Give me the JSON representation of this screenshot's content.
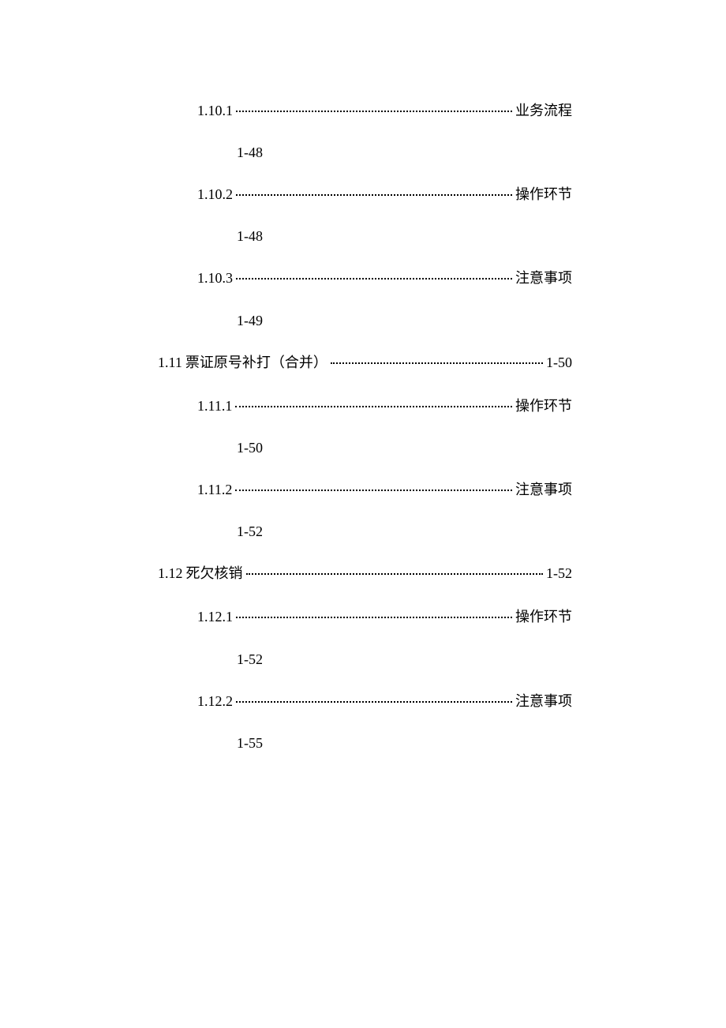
{
  "toc": {
    "text_color": "#000000",
    "background_color": "#ffffff",
    "font_size": 18,
    "entries": [
      {
        "level": 3,
        "number": "1.10.1",
        "title": "",
        "suffix": "业务流程",
        "page": "1-48"
      },
      {
        "level": 3,
        "number": "1.10.2",
        "title": "",
        "suffix": "操作环节",
        "page": "1-48"
      },
      {
        "level": 3,
        "number": "1.10.3",
        "title": "",
        "suffix": "注意事项",
        "page": "1-49"
      },
      {
        "level": 2,
        "number": "1.11",
        "title": "票证原号补打（合并）",
        "suffix": "1-50",
        "page": ""
      },
      {
        "level": 3,
        "number": "1.11.1",
        "title": "",
        "suffix": "操作环节",
        "page": "1-50"
      },
      {
        "level": 3,
        "number": "1.11.2",
        "title": "",
        "suffix": "注意事项",
        "page": "1-52"
      },
      {
        "level": 2,
        "number": "1.12",
        "title": "死欠核销",
        "suffix": "1-52",
        "page": ""
      },
      {
        "level": 3,
        "number": "1.12.1",
        "title": "",
        "suffix": "操作环节",
        "page": "1-52"
      },
      {
        "level": 3,
        "number": "1.12.2",
        "title": "",
        "suffix": "注意事项",
        "page": "1-55"
      }
    ]
  }
}
